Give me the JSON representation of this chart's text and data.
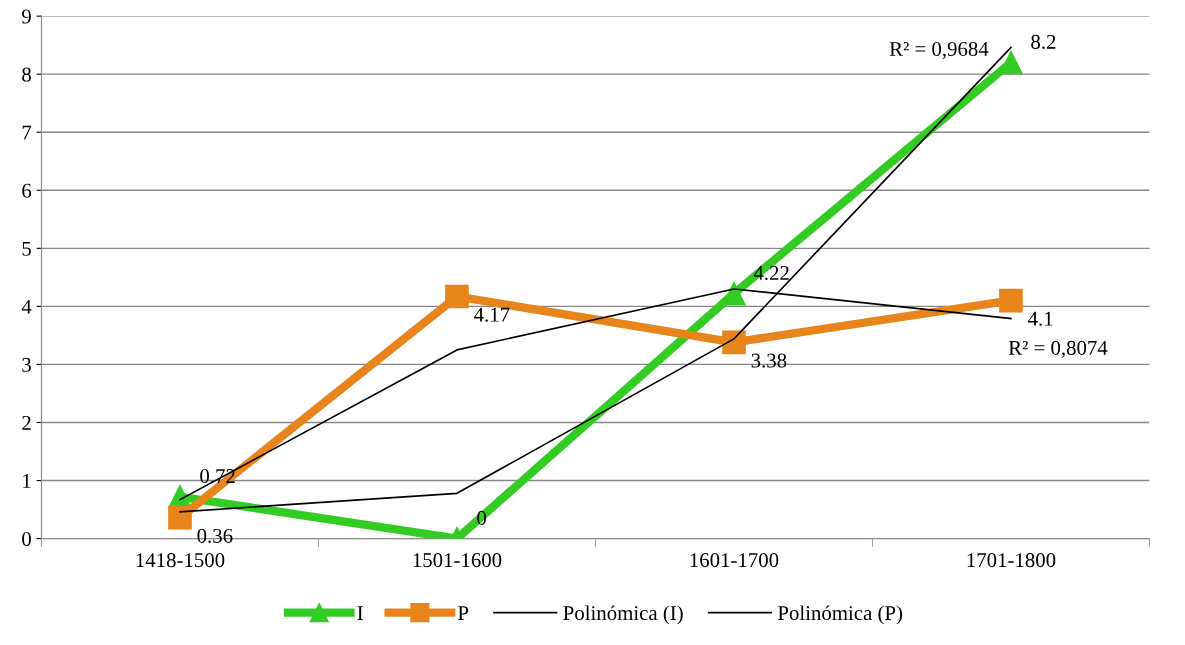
{
  "chart_data": {
    "type": "line",
    "categories": [
      "1418-1500",
      "1501-1600",
      "1601-1700",
      "1701-1800"
    ],
    "series": [
      {
        "name": "I",
        "color": "#33cc22",
        "values": [
          0.72,
          0,
          4.22,
          8.2
        ],
        "marker": "triangle",
        "value_labels": [
          "0.72",
          "0",
          "4.22",
          "8.2"
        ]
      },
      {
        "name": "P",
        "color": "#e8841c",
        "values": [
          0.36,
          4.17,
          3.38,
          4.1
        ],
        "marker": "square",
        "value_labels": [
          "0.36",
          "4.17",
          "3.38",
          "4.1"
        ]
      },
      {
        "name": "Polinómica (I)",
        "color": "#000000",
        "marker": "none",
        "values": [
          0.46,
          0.78,
          3.44,
          8.46
        ]
      },
      {
        "name": "Polinómica (P)",
        "color": "#000000",
        "marker": "none",
        "values": [
          0.67,
          3.25,
          4.3,
          3.79
        ]
      }
    ],
    "annotations": [
      "R² = 0,9684",
      "R² = 0,8074"
    ],
    "ylim": [
      0,
      9
    ],
    "yticks": [
      0,
      1,
      2,
      3,
      4,
      5,
      6,
      7,
      8,
      9
    ],
    "grid": "y",
    "legend": "bottom"
  }
}
